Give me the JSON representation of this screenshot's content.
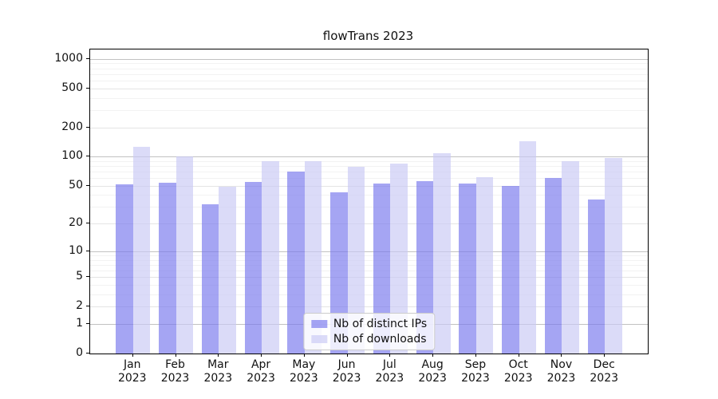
{
  "chart_data": {
    "type": "bar",
    "title": "flowTrans 2023",
    "categories": [
      "Jan",
      "Feb",
      "Mar",
      "Apr",
      "May",
      "Jun",
      "Jul",
      "Aug",
      "Sep",
      "Oct",
      "Nov",
      "Dec"
    ],
    "year_label": "2023",
    "series": [
      {
        "name": "Nb of distinct IPs",
        "color": "rgba(117,117,237,0.65)",
        "values": [
          52,
          54,
          32,
          55,
          70,
          43,
          53,
          56,
          53,
          50,
          60,
          36
        ]
      },
      {
        "name": "Nb of downloads",
        "color": "rgba(200,200,244,0.65)",
        "values": [
          125,
          100,
          49,
          90,
          89,
          78,
          85,
          108,
          62,
          143,
          89,
          96
        ]
      }
    ],
    "yscale": "log1p",
    "ylim": [
      0,
      1245
    ],
    "yticks": [
      0,
      1,
      2,
      5,
      10,
      20,
      50,
      100,
      200,
      500,
      1000
    ],
    "minor_yticks": [
      3,
      4,
      6,
      7,
      8,
      9,
      30,
      40,
      60,
      70,
      80,
      90,
      300,
      400,
      600,
      700,
      800,
      900
    ],
    "grid": true,
    "legend_position": "lower center",
    "colors": {
      "decade_grid": "#c2c2c2",
      "major_grid": "#e4e4e4",
      "minor_grid": "#f2f2f2",
      "spine": "#000000",
      "text": "#111111"
    }
  }
}
